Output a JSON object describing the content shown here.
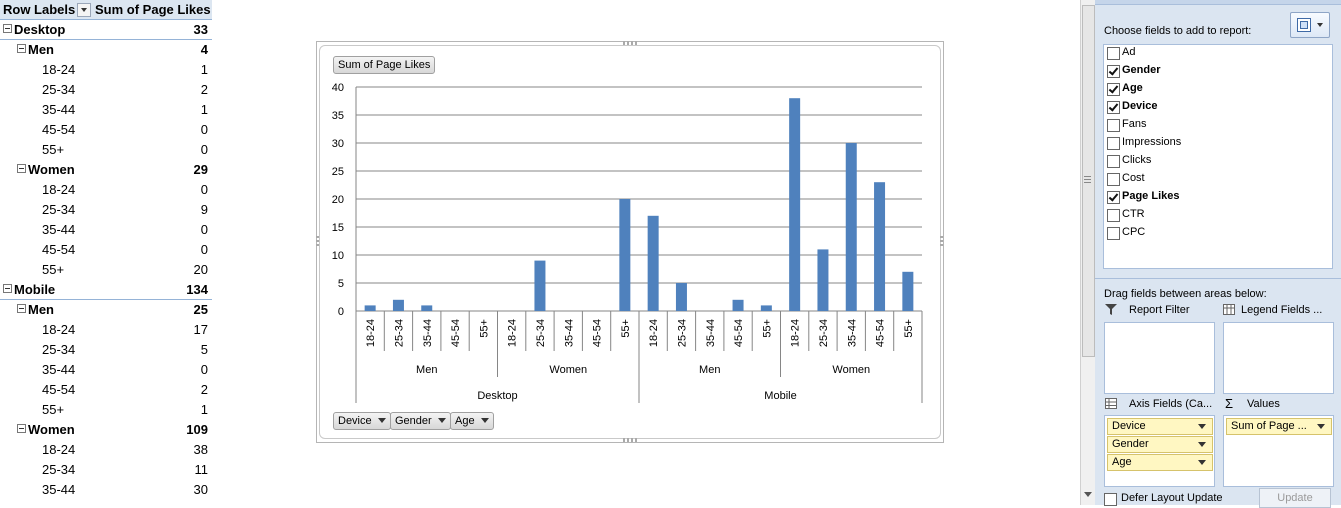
{
  "pivot": {
    "header": {
      "row_labels": "Row Labels",
      "values_header": "Sum of Page Likes"
    },
    "rows": [
      {
        "level": 0,
        "label": "Desktop",
        "value": "33"
      },
      {
        "level": 1,
        "label": "Men",
        "value": "4"
      },
      {
        "level": 2,
        "label": "18-24",
        "value": "1"
      },
      {
        "level": 2,
        "label": "25-34",
        "value": "2"
      },
      {
        "level": 2,
        "label": "35-44",
        "value": "1"
      },
      {
        "level": 2,
        "label": "45-54",
        "value": "0"
      },
      {
        "level": 2,
        "label": "55+",
        "value": "0"
      },
      {
        "level": 1,
        "label": "Women",
        "value": "29"
      },
      {
        "level": 2,
        "label": "18-24",
        "value": "0"
      },
      {
        "level": 2,
        "label": "25-34",
        "value": "9"
      },
      {
        "level": 2,
        "label": "35-44",
        "value": "0"
      },
      {
        "level": 2,
        "label": "45-54",
        "value": "0"
      },
      {
        "level": 2,
        "label": "55+",
        "value": "20"
      },
      {
        "level": 0,
        "label": "Mobile",
        "value": "134"
      },
      {
        "level": 1,
        "label": "Men",
        "value": "25"
      },
      {
        "level": 2,
        "label": "18-24",
        "value": "17"
      },
      {
        "level": 2,
        "label": "25-34",
        "value": "5"
      },
      {
        "level": 2,
        "label": "35-44",
        "value": "0"
      },
      {
        "level": 2,
        "label": "45-54",
        "value": "2"
      },
      {
        "level": 2,
        "label": "55+",
        "value": "1"
      },
      {
        "level": 1,
        "label": "Women",
        "value": "109"
      },
      {
        "level": 2,
        "label": "18-24",
        "value": "38"
      },
      {
        "level": 2,
        "label": "25-34",
        "value": "11"
      },
      {
        "level": 2,
        "label": "35-44",
        "value": "30"
      }
    ]
  },
  "chart_data": {
    "type": "bar",
    "title": "",
    "value_field_button": "Sum of Page Likes",
    "yticks": [
      "0",
      "5",
      "10",
      "15",
      "20",
      "25",
      "30",
      "35",
      "40"
    ],
    "ylim": [
      0,
      40
    ],
    "grid": true,
    "bar_color": "#4f81bd",
    "categories": [
      "18-24",
      "25-34",
      "35-44",
      "45-54",
      "55+",
      "18-24",
      "25-34",
      "35-44",
      "45-54",
      "55+",
      "18-24",
      "25-34",
      "35-44",
      "45-54",
      "55+",
      "18-24",
      "25-34",
      "35-44",
      "45-54",
      "55+"
    ],
    "values": [
      1,
      2,
      1,
      0,
      0,
      0,
      9,
      0,
      0,
      20,
      17,
      5,
      0,
      2,
      1,
      38,
      11,
      30,
      23,
      7
    ],
    "gender_groups": [
      "Men",
      "Women",
      "Men",
      "Women"
    ],
    "device_groups": [
      "Desktop",
      "Mobile"
    ],
    "axis_field_buttons": [
      "Device",
      "Gender",
      "Age"
    ]
  },
  "field_list": {
    "choose_label": "Choose fields to add to report:",
    "fields": [
      {
        "name": "Ad",
        "checked": false
      },
      {
        "name": "Gender",
        "checked": true
      },
      {
        "name": "Age",
        "checked": true
      },
      {
        "name": "Device",
        "checked": true
      },
      {
        "name": "Fans",
        "checked": false
      },
      {
        "name": "Impressions",
        "checked": false
      },
      {
        "name": "Clicks",
        "checked": false
      },
      {
        "name": "Cost",
        "checked": false
      },
      {
        "name": "Page Likes",
        "checked": true
      },
      {
        "name": "CTR",
        "checked": false
      },
      {
        "name": "CPC",
        "checked": false
      }
    ],
    "drag_label": "Drag fields between areas below:",
    "report_filter": "Report Filter",
    "legend_fields": "Legend Fields ...",
    "axis_fields": "Axis Fields (Ca...",
    "values_label": "Values",
    "axis_items": [
      "Device",
      "Gender",
      "Age"
    ],
    "value_items": [
      "Sum of Page ..."
    ],
    "defer_label": "Defer Layout Update",
    "update_label": "Update"
  }
}
